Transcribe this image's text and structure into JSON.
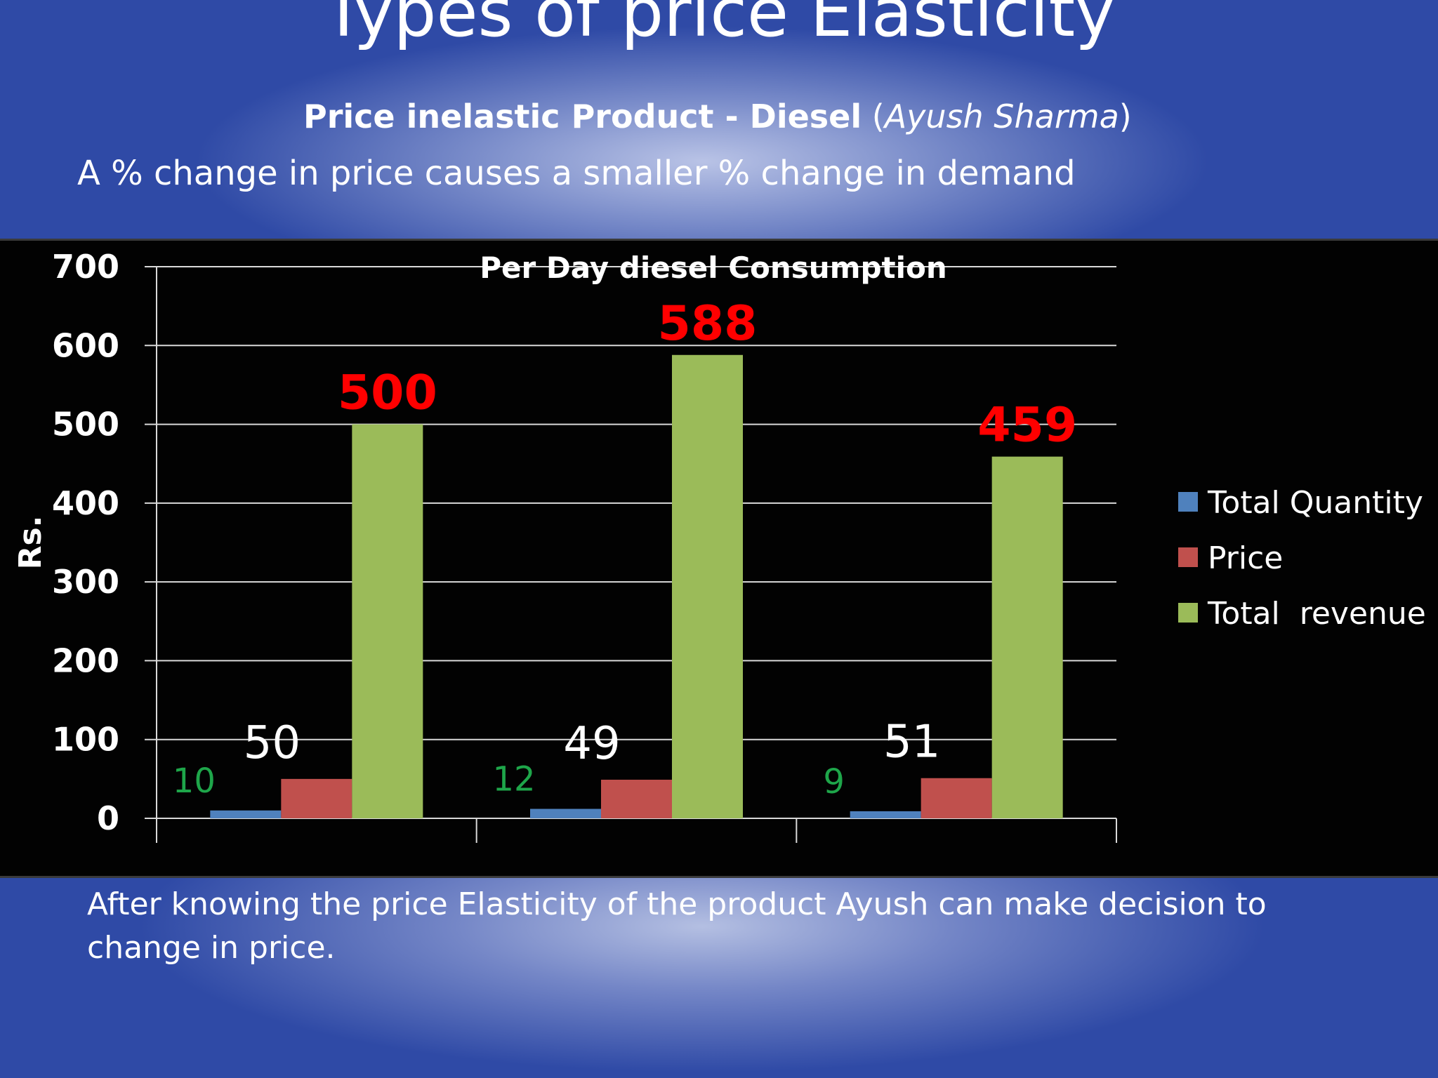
{
  "slide": {
    "title": "Types of price Elasticity",
    "subtitle_bold": "Price inelastic Product  - Diesel",
    "subtitle_open": "   (",
    "subtitle_author": "Ayush Sharma",
    "subtitle_close": ")",
    "statement": "A % change in price causes a smaller % change in demand",
    "footer": "After knowing the price Elasticity of the product Ayush can make decision to change in price."
  },
  "chart_data": {
    "type": "bar",
    "title": "Per Day diesel Consumption",
    "xlabel": "",
    "ylabel": "Rs.",
    "ylim": [
      0,
      700
    ],
    "yticks": [
      0,
      100,
      200,
      300,
      400,
      500,
      600,
      700
    ],
    "categories": [
      "",
      "",
      ""
    ],
    "grid": true,
    "legend_position": "right",
    "series": [
      {
        "name": "Total Quantity",
        "color": "#4f81bd",
        "values": [
          10,
          12,
          9
        ],
        "label_color": "#1ea64a",
        "label_size": "small"
      },
      {
        "name": "Price",
        "color": "#c0504d",
        "values": [
          50,
          49,
          51
        ],
        "label_color": "#ffffff",
        "label_size": "medium"
      },
      {
        "name": "Total  revenue",
        "color": "#9bbb59",
        "values": [
          500,
          588,
          459
        ],
        "label_color": "#ff0000",
        "label_size": "large"
      }
    ]
  }
}
